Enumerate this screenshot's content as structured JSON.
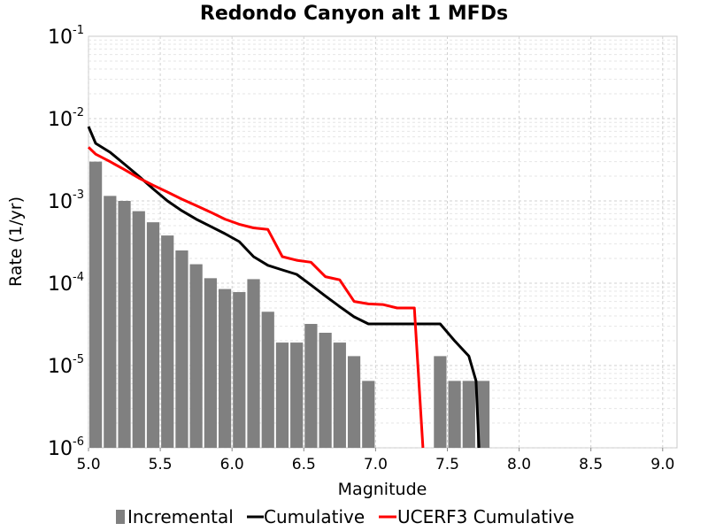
{
  "chart_data": {
    "type": "bar",
    "title": "Redondo Canyon alt 1 MFDs",
    "xlabel": "Magnitude",
    "ylabel": "Rate (1/yr)",
    "xlim": [
      5.0,
      9.1
    ],
    "ylim": [
      1e-06,
      0.1
    ],
    "y_scale": "log",
    "grid": true,
    "legend_position": "bottom",
    "x_ticks": [
      "5.0",
      "5.5",
      "6.0",
      "6.5",
      "7.0",
      "7.5",
      "8.0",
      "8.5",
      "9.0"
    ],
    "y_ticks": [
      {
        "base": "10",
        "exp": "-1",
        "value": 0.1
      },
      {
        "base": "10",
        "exp": "-2",
        "value": 0.01
      },
      {
        "base": "10",
        "exp": "-3",
        "value": 0.001
      },
      {
        "base": "10",
        "exp": "-4",
        "value": 0.0001
      },
      {
        "base": "10",
        "exp": "-5",
        "value": 1e-05
      },
      {
        "base": "10",
        "exp": "-6",
        "value": 1e-06
      }
    ],
    "series": [
      {
        "name": "Incremental",
        "kind": "bar",
        "color": "#808080",
        "x": [
          5.0,
          5.1,
          5.2,
          5.3,
          5.4,
          5.5,
          5.6,
          5.7,
          5.8,
          5.9,
          6.0,
          6.1,
          6.2,
          6.3,
          6.4,
          6.5,
          6.6,
          6.7,
          6.8,
          6.9,
          7.0,
          7.1,
          7.2,
          7.3,
          7.4,
          7.5,
          7.6,
          7.7
        ],
        "values": [
          0.003,
          0.00115,
          0.001,
          0.00075,
          0.00055,
          0.00038,
          0.00025,
          0.00017,
          0.000115,
          8.5e-05,
          7.8e-05,
          0.000112,
          4.5e-05,
          1.9e-05,
          1.9e-05,
          3.2e-05,
          2.5e-05,
          1.9e-05,
          1.3e-05,
          6.5e-06,
          null,
          null,
          null,
          null,
          1.3e-05,
          6.5e-06,
          6.5e-06,
          6.5e-06
        ]
      },
      {
        "name": "Cumulative",
        "kind": "line",
        "color": "#000000",
        "x": [
          4.95,
          5.05,
          5.15,
          5.25,
          5.35,
          5.45,
          5.55,
          5.65,
          5.75,
          5.85,
          5.95,
          6.05,
          6.15,
          6.25,
          6.35,
          6.45,
          6.55,
          6.65,
          6.75,
          6.85,
          6.95,
          7.05,
          7.15,
          7.25,
          7.35,
          7.45,
          7.55,
          7.65,
          7.7,
          7.72
        ],
        "values": [
          0.008,
          0.005,
          0.0039,
          0.0028,
          0.002,
          0.0014,
          0.001,
          0.00076,
          0.0006,
          0.00049,
          0.0004,
          0.00032,
          0.00021,
          0.000165,
          0.000145,
          0.000128,
          9.5e-05,
          7e-05,
          5.2e-05,
          3.9e-05,
          3.2e-05,
          3.2e-05,
          3.2e-05,
          3.2e-05,
          3.2e-05,
          3.2e-05,
          2e-05,
          1.3e-05,
          6.5e-06,
          1e-06
        ]
      },
      {
        "name": "UCERF3 Cumulative",
        "kind": "line",
        "color": "#ff0000",
        "x": [
          4.95,
          5.05,
          5.15,
          5.25,
          5.35,
          5.45,
          5.55,
          5.65,
          5.75,
          5.85,
          5.95,
          6.05,
          6.15,
          6.25,
          6.35,
          6.45,
          6.55,
          6.65,
          6.75,
          6.85,
          6.95,
          7.05,
          7.15,
          7.25,
          7.27,
          7.33
        ],
        "values": [
          0.0045,
          0.0037,
          0.003,
          0.0024,
          0.0019,
          0.00155,
          0.00128,
          0.00105,
          0.00088,
          0.00073,
          0.0006,
          0.00052,
          0.00047,
          0.00045,
          0.00021,
          0.00019,
          0.00018,
          0.00012,
          0.00011,
          6e-05,
          5.6e-05,
          5.5e-05,
          5e-05,
          5e-05,
          5e-05,
          1e-06
        ]
      }
    ]
  }
}
